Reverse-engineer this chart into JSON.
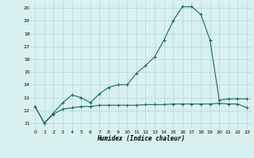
{
  "xlabel": "Humidex (Indice chaleur)",
  "x": [
    0,
    1,
    2,
    3,
    4,
    5,
    6,
    7,
    8,
    9,
    10,
    11,
    12,
    13,
    14,
    15,
    16,
    17,
    18,
    19,
    20,
    21,
    22,
    23
  ],
  "line1": [
    12.3,
    11.0,
    11.8,
    12.6,
    13.2,
    13.0,
    12.6,
    13.3,
    13.8,
    14.0,
    14.0,
    14.9,
    15.5,
    16.2,
    17.5,
    19.0,
    20.1,
    20.1,
    19.5,
    17.5,
    12.8,
    12.9,
    12.9,
    12.9
  ],
  "line2": [
    12.3,
    11.0,
    11.7,
    12.1,
    12.2,
    12.3,
    12.3,
    12.4,
    12.4,
    12.4,
    12.4,
    12.4,
    12.45,
    12.45,
    12.45,
    12.5,
    12.5,
    12.5,
    12.5,
    12.5,
    12.55,
    12.5,
    12.5,
    12.2
  ],
  "ylim": [
    10.5,
    20.5
  ],
  "xlim": [
    -0.5,
    23.5
  ],
  "yticks": [
    11,
    12,
    13,
    14,
    15,
    16,
    17,
    18,
    19,
    20
  ],
  "xticks": [
    0,
    1,
    2,
    3,
    4,
    5,
    6,
    7,
    8,
    9,
    10,
    11,
    12,
    13,
    14,
    15,
    16,
    17,
    18,
    19,
    20,
    21,
    22,
    23
  ],
  "line_color": "#1a6b5a",
  "bg_color": "#d8f0f0",
  "grid_color": "#b8d4d4",
  "marker": "+",
  "marker_size": 3,
  "line_width": 0.8
}
